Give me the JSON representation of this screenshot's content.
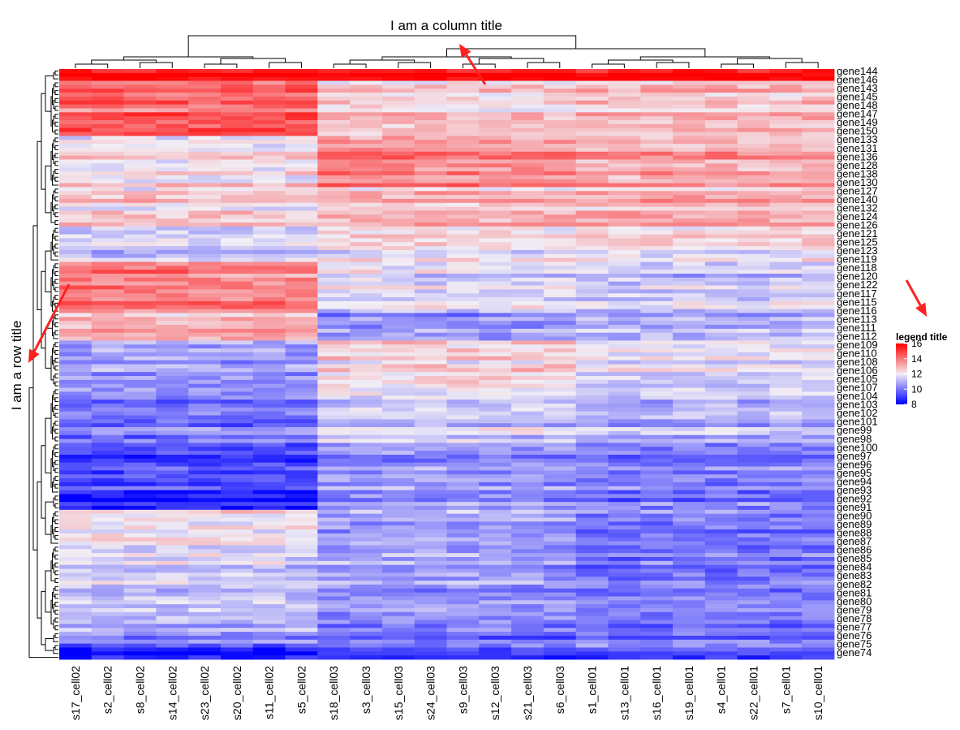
{
  "chart_data": {
    "type": "heatmap",
    "title": "",
    "column_title": "I am a column title",
    "row_title": "I am a row title",
    "columns": [
      "s17_cell02",
      "s2_cell02",
      "s8_cell02",
      "s14_cell02",
      "s23_cell02",
      "s20_cell02",
      "s11_cell02",
      "s5_cell02",
      "s18_cell03",
      "s3_cell03",
      "s15_cell03",
      "s24_cell03",
      "s9_cell03",
      "s12_cell03",
      "s21_cell03",
      "s6_cell03",
      "s1_cell01",
      "s13_cell01",
      "s16_cell01",
      "s19_cell01",
      "s4_cell01",
      "s22_cell01",
      "s7_cell01",
      "s10_cell01"
    ],
    "column_groups": [
      {
        "group": "cell02",
        "count": 8
      },
      {
        "group": "cell03",
        "count": 8
      },
      {
        "group": "cell01",
        "count": 8
      }
    ],
    "row_labels_visible": [
      "gene144",
      "gene146",
      "gene143",
      "gene145",
      "gene148",
      "gene147",
      "gene149",
      "gene150",
      "gene133",
      "gene131",
      "gene136",
      "gene128",
      "gene138",
      "gene130",
      "gene127",
      "gene140",
      "gene132",
      "gene124",
      "gene126",
      "gene121",
      "gene125",
      "gene123",
      "gene119",
      "gene118",
      "gene120",
      "gene122",
      "gene117",
      "gene115",
      "gene116",
      "gene113",
      "gene111",
      "gene112",
      "gene109",
      "gene110",
      "gene108",
      "gene106",
      "gene105",
      "gene107",
      "gene104",
      "gene103",
      "gene102",
      "gene101",
      "gene99",
      "gene98",
      "gene100",
      "gene97",
      "gene96",
      "gene95",
      "gene94",
      "gene93",
      "gene92",
      "gene91",
      "gene90",
      "gene89",
      "gene88",
      "gene87",
      "gene86",
      "gene85",
      "gene84",
      "gene83",
      "gene82",
      "gene81",
      "gene80",
      "gene79",
      "gene78",
      "gene77",
      "gene76",
      "gene75",
      "gene74"
    ],
    "row_count": 150,
    "row_block_profile": [
      {
        "rows": 3,
        "cell02": 16.0,
        "cell03": 16.0,
        "cell01": 16.0
      },
      {
        "rows": 14,
        "cell02": 14.2,
        "cell03": 12.4,
        "cell01": 12.6
      },
      {
        "rows": 13,
        "cell02": 12.3,
        "cell03": 13.8,
        "cell01": 13.3
      },
      {
        "rows": 10,
        "cell02": 12.5,
        "cell03": 12.8,
        "cell01": 13.0
      },
      {
        "rows": 9,
        "cell02": 11.2,
        "cell03": 12.0,
        "cell01": 12.0
      },
      {
        "rows": 13,
        "cell02": 13.8,
        "cell03": 11.6,
        "cell01": 11.3
      },
      {
        "rows": 7,
        "cell02": 13.0,
        "cell03": 10.5,
        "cell01": 11.0
      },
      {
        "rows": 12,
        "cell02": 10.6,
        "cell03": 12.4,
        "cell01": 11.6
      },
      {
        "rows": 14,
        "cell02": 10.0,
        "cell03": 11.4,
        "cell01": 11.0
      },
      {
        "rows": 13,
        "cell02": 9.3,
        "cell03": 10.6,
        "cell01": 10.2
      },
      {
        "rows": 4,
        "cell02": 8.4,
        "cell03": 10.4,
        "cell01": 10.0
      },
      {
        "rows": 9,
        "cell02": 12.4,
        "cell03": 10.9,
        "cell01": 10.3
      },
      {
        "rows": 10,
        "cell02": 11.6,
        "cell03": 10.7,
        "cell01": 10.0
      },
      {
        "rows": 12,
        "cell02": 11.0,
        "cell03": 10.2,
        "cell01": 9.9
      },
      {
        "rows": 3,
        "cell02": 10.0,
        "cell03": 9.4,
        "cell01": 9.6
      },
      {
        "rows": 3,
        "cell02": 8.8,
        "cell03": 9.6,
        "cell01": 9.9
      },
      {
        "rows": 1,
        "cell02": 8.2,
        "cell03": 8.2,
        "cell01": 8.4
      }
    ],
    "legend": {
      "title": "legend title",
      "ticks": [
        16,
        14,
        12,
        10,
        8
      ],
      "range": [
        8,
        16
      ],
      "colors": {
        "low": "#0000ff",
        "mid": "#f2eef5",
        "high": "#ff0000"
      },
      "placement": "right"
    },
    "annotation_arrow_color": "#ff2020"
  }
}
